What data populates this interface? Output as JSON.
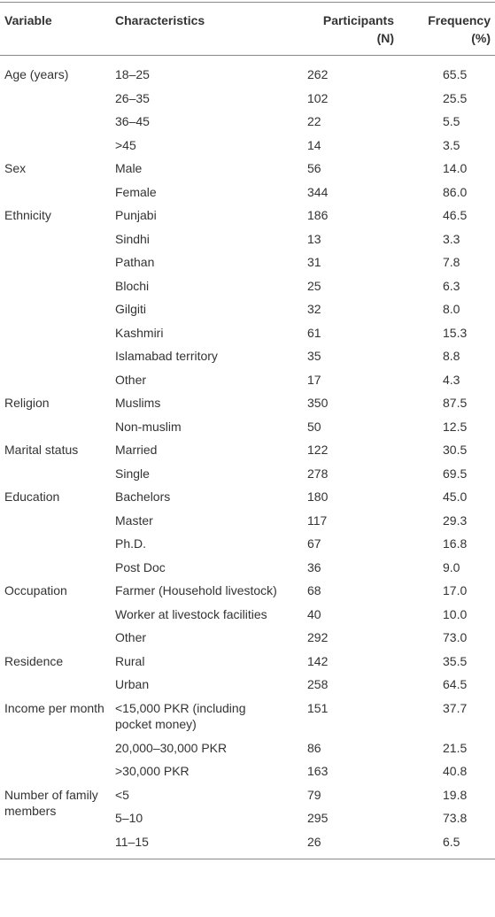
{
  "table": {
    "header": {
      "variable": "Variable",
      "characteristics": "Characteristics",
      "participants": [
        "Participants",
        "(N)"
      ],
      "frequency": [
        "Frequency",
        "(%)"
      ]
    },
    "groups": [
      {
        "variable": "Age (years)",
        "rows": [
          [
            "18–25",
            "262",
            "65.5"
          ],
          [
            "26–35",
            "102",
            "25.5"
          ],
          [
            "36–45",
            "22",
            "5.5"
          ],
          [
            ">45",
            "14",
            "3.5"
          ]
        ]
      },
      {
        "variable": "Sex",
        "rows": [
          [
            "Male",
            "56",
            "14.0"
          ],
          [
            "Female",
            "344",
            "86.0"
          ]
        ]
      },
      {
        "variable": "Ethnicity",
        "rows": [
          [
            "Punjabi",
            "186",
            "46.5"
          ],
          [
            "Sindhi",
            "13",
            "3.3"
          ],
          [
            "Pathan",
            "31",
            "7.8"
          ],
          [
            "Blochi",
            "25",
            "6.3"
          ],
          [
            "Gilgiti",
            "32",
            "8.0"
          ],
          [
            "Kashmiri",
            "61",
            "15.3"
          ],
          [
            "Islamabad territory",
            "35",
            "8.8"
          ],
          [
            "Other",
            "17",
            "4.3"
          ]
        ]
      },
      {
        "variable": "Religion",
        "rows": [
          [
            "Muslims",
            "350",
            "87.5"
          ],
          [
            "Non-muslim",
            "50",
            "12.5"
          ]
        ]
      },
      {
        "variable": "Marital status",
        "rows": [
          [
            "Married",
            "122",
            "30.5"
          ],
          [
            "Single",
            "278",
            "69.5"
          ]
        ]
      },
      {
        "variable": "Education",
        "rows": [
          [
            "Bachelors",
            "180",
            "45.0"
          ],
          [
            "Master",
            "117",
            "29.3"
          ],
          [
            "Ph.D.",
            "67",
            "16.8"
          ],
          [
            "Post Doc",
            "36",
            "9.0"
          ]
        ]
      },
      {
        "variable": "Occupation",
        "rows": [
          [
            "Farmer (Household livestock)",
            "68",
            "17.0"
          ],
          [
            "Worker at livestock facilities",
            "40",
            "10.0"
          ],
          [
            "Other",
            "292",
            "73.0"
          ]
        ]
      },
      {
        "variable": "Residence",
        "rows": [
          [
            "Rural",
            "142",
            "35.5"
          ],
          [
            "Urban",
            "258",
            "64.5"
          ]
        ]
      },
      {
        "variable": "Income per month",
        "rows": [
          [
            "<15,000 PKR (including pocket money)",
            "151",
            "37.7"
          ],
          [
            "20,000–30,000 PKR",
            "86",
            "21.5"
          ],
          [
            ">30,000 PKR",
            "163",
            "40.8"
          ]
        ]
      },
      {
        "variable": "Number of family members",
        "rows": [
          [
            "<5",
            "79",
            "19.8"
          ],
          [
            "5–10",
            "295",
            "73.8"
          ],
          [
            "11–15",
            "26",
            "6.5"
          ]
        ]
      }
    ]
  }
}
